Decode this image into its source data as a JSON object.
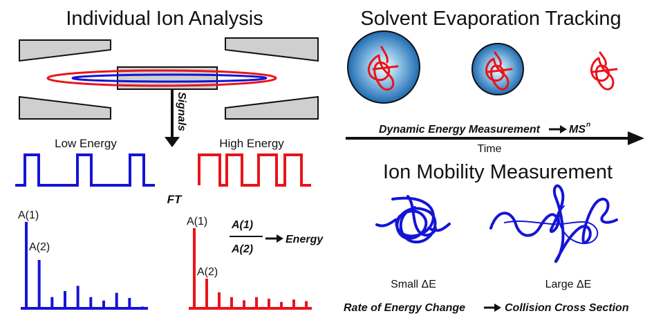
{
  "left_panel": {
    "title": "Individual Ion Analysis",
    "signals_label": "Signals",
    "low_energy_label": "Low Energy",
    "high_energy_label": "High Energy",
    "ft_label": "FT",
    "peak_a1_label": "A(1)",
    "peak_a2_label": "A(2)",
    "ratio_numerator": "A(1)",
    "ratio_denominator": "A(2)",
    "ratio_result": "Energy"
  },
  "right_top_panel": {
    "title": "Solvent Evaporation Tracking",
    "arrow_caption_text": "Dynamic Energy Measurement",
    "arrow_caption_result": "MS",
    "arrow_caption_superscript": "n",
    "time_label": "Time"
  },
  "right_bottom_panel": {
    "title": "Ion Mobility Measurement",
    "small_label": "Small ΔE",
    "large_label": "Large ΔE",
    "caption_text": "Rate of Energy Change",
    "caption_result": "Collision Cross Section"
  },
  "colors": {
    "low_energy": "#1414d6",
    "high_energy": "#e8141a",
    "droplet": "#1e6bb0",
    "electrode": "#cfcfcf"
  },
  "spectra": {
    "low_energy_peaks": [
      1.0,
      0.56,
      0.13,
      0.2,
      0.26,
      0.13,
      0.09,
      0.18,
      0.12,
      0.02
    ],
    "high_energy_peaks": [
      1.0,
      0.37,
      0.2,
      0.14,
      0.1,
      0.14,
      0.12,
      0.08,
      0.11,
      0.09
    ]
  }
}
